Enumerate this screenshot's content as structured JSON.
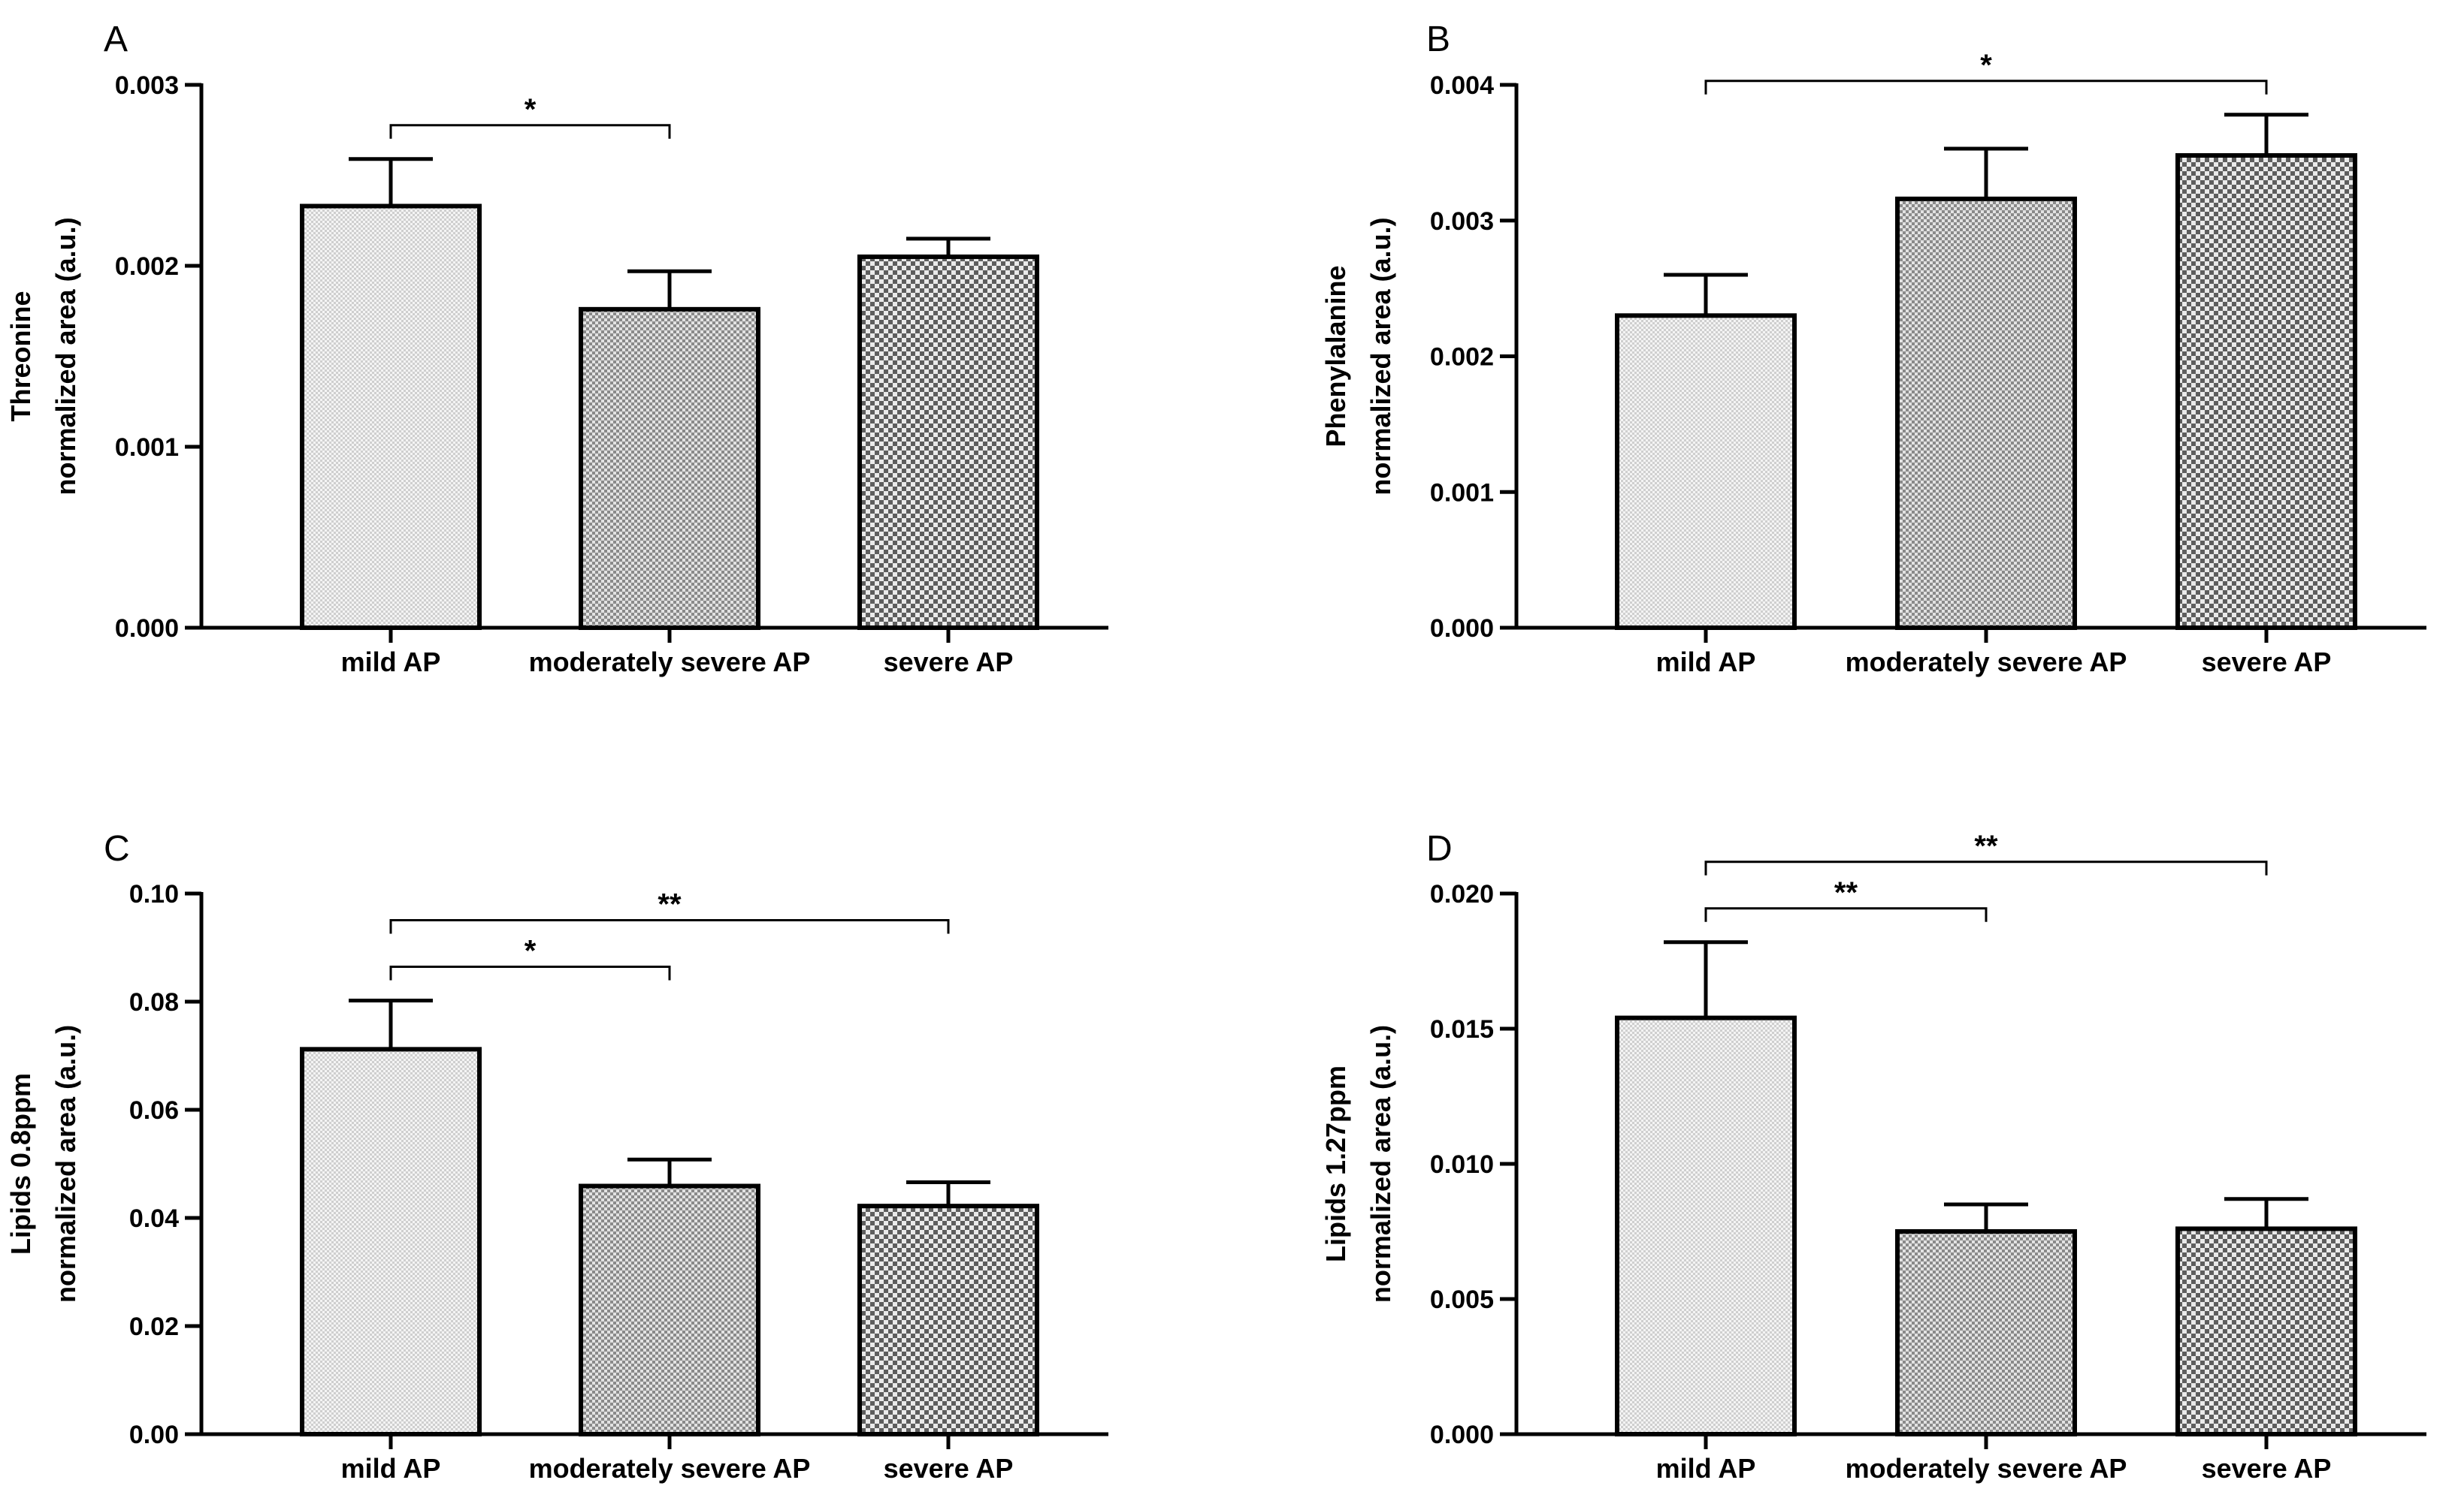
{
  "figure": {
    "categories": [
      "mild AP",
      "moderately severe AP",
      "severe AP"
    ],
    "fills": {
      "mild": "#e6e6e6",
      "moderate": "#a9a9a9",
      "severe": "#8c8c8c"
    },
    "axis_color": "#000000"
  },
  "chart_data": [
    {
      "type": "bar",
      "panel": "A",
      "ylabel": [
        "Threonine",
        "normalized area (a.u.)"
      ],
      "categories": [
        "mild AP",
        "moderately severe AP",
        "severe AP"
      ],
      "values": [
        0.00233,
        0.00176,
        0.00205
      ],
      "errors": [
        0.00026,
        0.00021,
        0.0001
      ],
      "ylim": [
        0,
        0.003
      ],
      "yticks": [
        "0.000",
        "0.001",
        "0.002",
        "0.003"
      ],
      "significance": [
        {
          "from": 0,
          "to": 1,
          "label": "*"
        }
      ]
    },
    {
      "type": "bar",
      "panel": "B",
      "ylabel": [
        "Phenylalanine",
        "normalized area (a.u.)"
      ],
      "categories": [
        "mild AP",
        "moderately severe AP",
        "severe AP"
      ],
      "values": [
        0.0023,
        0.00316,
        0.00348
      ],
      "errors": [
        0.0003,
        0.00037,
        0.0003
      ],
      "ylim": [
        0,
        0.004
      ],
      "yticks": [
        "0.000",
        "0.001",
        "0.002",
        "0.003",
        "0.004"
      ],
      "significance": [
        {
          "from": 0,
          "to": 2,
          "label": "*"
        }
      ]
    },
    {
      "type": "bar",
      "panel": "C",
      "ylabel": [
        "Lipids 0.8ppm",
        "normalized area (a.u.)"
      ],
      "categories": [
        "mild AP",
        "moderately severe AP",
        "severe AP"
      ],
      "values": [
        0.0712,
        0.0459,
        0.0422
      ],
      "errors": [
        0.009,
        0.0049,
        0.0044
      ],
      "ylim": [
        0,
        0.1
      ],
      "yticks": [
        "0.00",
        "0.02",
        "0.04",
        "0.06",
        "0.08",
        "0.10"
      ],
      "significance": [
        {
          "from": 0,
          "to": 1,
          "label": "*"
        },
        {
          "from": 0,
          "to": 2,
          "label": "**"
        }
      ]
    },
    {
      "type": "bar",
      "panel": "D",
      "ylabel": [
        "Lipids 1.27ppm",
        "normalized area (a.u.)"
      ],
      "categories": [
        "mild AP",
        "moderately severe AP",
        "severe AP"
      ],
      "values": [
        0.0154,
        0.0075,
        0.0076
      ],
      "errors": [
        0.0028,
        0.001,
        0.0011
      ],
      "ylim": [
        0,
        0.02
      ],
      "yticks": [
        "0.000",
        "0.005",
        "0.010",
        "0.015",
        "0.020"
      ],
      "significance": [
        {
          "from": 0,
          "to": 1,
          "label": "**"
        },
        {
          "from": 0,
          "to": 2,
          "label": "**"
        }
      ]
    }
  ]
}
